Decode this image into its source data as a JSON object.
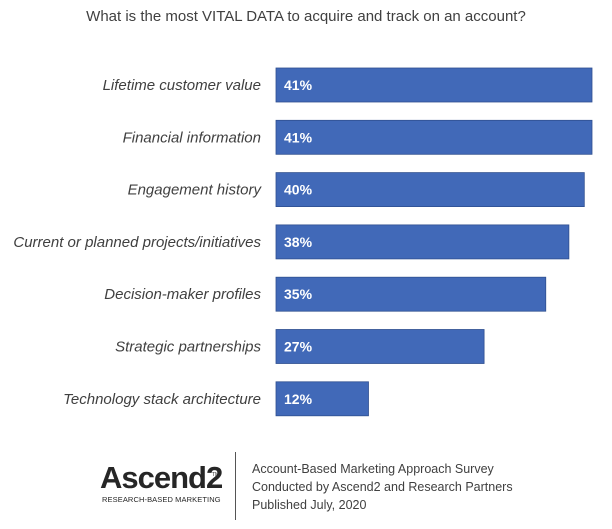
{
  "chart_data": {
    "type": "bar",
    "orientation": "horizontal",
    "title": "What is the most VITAL DATA to acquire and track on an account?",
    "categories": [
      "Lifetime customer value",
      "Financial information",
      "Engagement history",
      "Current or planned projects/initiatives",
      "Decision-maker profiles",
      "Strategic partnerships",
      "Technology stack architecture"
    ],
    "values": [
      41,
      41,
      40,
      38,
      35,
      27,
      12
    ],
    "value_labels": [
      "41%",
      "41%",
      "40%",
      "38%",
      "35%",
      "27%",
      "12%"
    ],
    "xlim": [
      0,
      41
    ],
    "grid": false,
    "bar_color": "#4169b8"
  },
  "footer": {
    "logo_text": "Ascend2",
    "logo_tm": "TM",
    "logo_tagline": "RESEARCH-BASED MARKETING",
    "source_lines": [
      "Account-Based Marketing Approach Survey",
      "Conducted by Ascend2 and Research Partners",
      "Published July, 2020"
    ]
  }
}
